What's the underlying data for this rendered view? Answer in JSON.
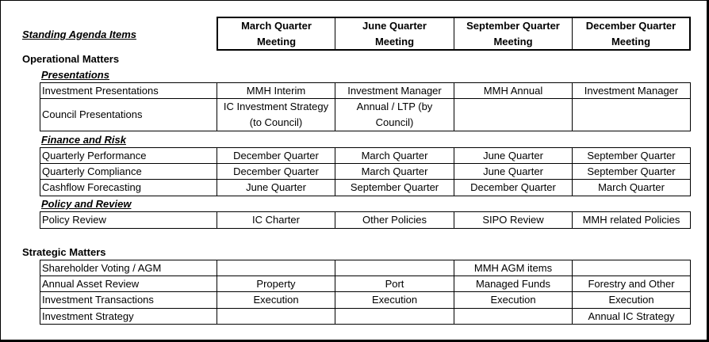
{
  "title": "Standing Agenda Items",
  "quarters": [
    {
      "line1": "March Quarter",
      "line2": "Meeting"
    },
    {
      "line1": "June Quarter",
      "line2": "Meeting"
    },
    {
      "line1": "September Quarter",
      "line2": "Meeting"
    },
    {
      "line1": "December Quarter",
      "line2": "Meeting"
    }
  ],
  "operational": {
    "heading": "Operational Matters",
    "presentations": {
      "heading": "Presentations",
      "rows": [
        {
          "label": "Investment Presentations",
          "cells": [
            "MMH Interim",
            "Investment Manager",
            "MMH Annual",
            "Investment Manager"
          ]
        },
        {
          "label": "Council Presentations",
          "cells": [
            "IC Investment Strategy",
            "Annual / LTP (by",
            "",
            ""
          ],
          "cells2": [
            "(to Council)",
            "Council)",
            "",
            ""
          ]
        }
      ]
    },
    "finance": {
      "heading": "Finance and Risk",
      "rows": [
        {
          "label": "Quarterly Performance",
          "cells": [
            "December Quarter",
            "March Quarter",
            "June Quarter",
            "September Quarter"
          ]
        },
        {
          "label": "Quarterly Compliance",
          "cells": [
            "December Quarter",
            "March Quarter",
            "June Quarter",
            "September Quarter"
          ]
        },
        {
          "label": "Cashflow Forecasting",
          "cells": [
            "June Quarter",
            "September Quarter",
            "December Quarter",
            "March Quarter"
          ]
        }
      ]
    },
    "policy": {
      "heading": "Policy and Review",
      "rows": [
        {
          "label": "Policy Review",
          "cells": [
            "IC Charter",
            "Other Policies",
            "SIPO Review",
            "MMH related Policies"
          ]
        }
      ]
    }
  },
  "strategic": {
    "heading": "Strategic Matters",
    "rows": [
      {
        "label": "Shareholder Voting / AGM",
        "cells": [
          "",
          "",
          "MMH AGM items",
          ""
        ]
      },
      {
        "label": "Annual Asset Review",
        "cells": [
          "Property",
          "Port",
          "Managed Funds",
          "Forestry and Other"
        ]
      },
      {
        "label": "Investment Transactions",
        "cells": [
          "Execution",
          "Execution",
          "Execution",
          "Execution"
        ]
      },
      {
        "label": "Investment Strategy",
        "cells": [
          "",
          "",
          "",
          "Annual IC Strategy"
        ]
      }
    ]
  }
}
